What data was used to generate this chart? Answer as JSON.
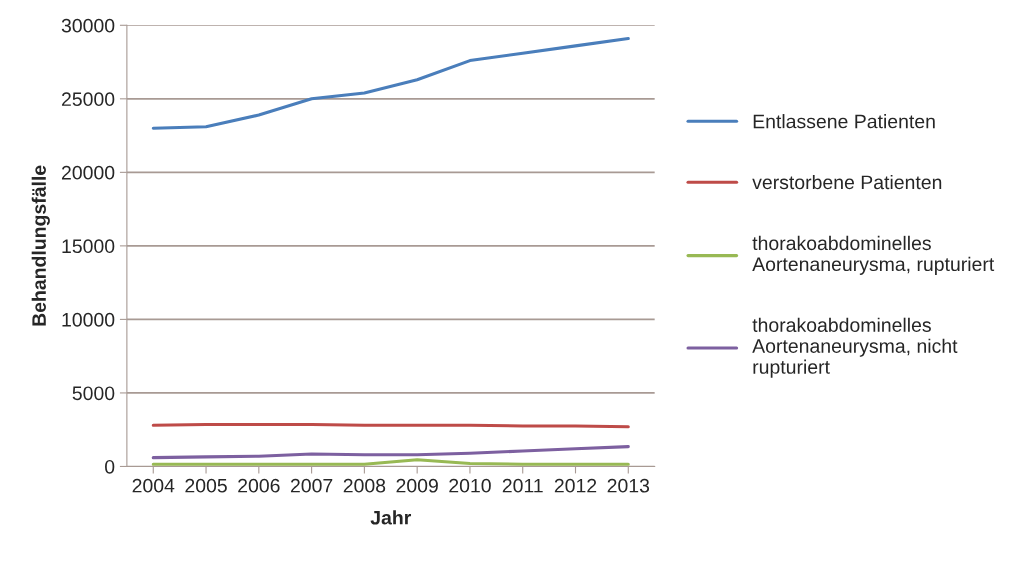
{
  "chart_data": {
    "type": "line",
    "xlabel": "Jahr",
    "ylabel": "Behandlungsfälle",
    "categories": [
      "2004",
      "2005",
      "2006",
      "2007",
      "2008",
      "2009",
      "2010",
      "2011",
      "2012",
      "2013"
    ],
    "series": [
      {
        "name": "Entlassene Patienten",
        "color": "#4a7ebb",
        "values": [
          23000,
          23100,
          23900,
          25000,
          25400,
          26300,
          27600,
          28100,
          28600,
          29100
        ]
      },
      {
        "name": "verstorbene Patienten",
        "color": "#be4b48",
        "values": [
          2800,
          2850,
          2850,
          2850,
          2800,
          2800,
          2800,
          2750,
          2750,
          2700
        ]
      },
      {
        "name": "thorakoabdominelles\nAortenaneurysma, rupturiert",
        "color": "#98b954",
        "values": [
          150,
          150,
          150,
          150,
          150,
          450,
          200,
          150,
          150,
          150
        ]
      },
      {
        "name": "thorakoabdominelles\nAortenaneurysma, nicht\nrupturiert",
        "color": "#7d60a0",
        "values": [
          600,
          650,
          700,
          850,
          800,
          800,
          900,
          1050,
          1200,
          1350
        ]
      }
    ],
    "ylim": [
      0,
      30000
    ],
    "yticks": [
      0,
      5000,
      10000,
      15000,
      20000,
      25000,
      30000
    ],
    "grid": "y",
    "legend": "right",
    "marker": "none",
    "line_style": "solid"
  }
}
